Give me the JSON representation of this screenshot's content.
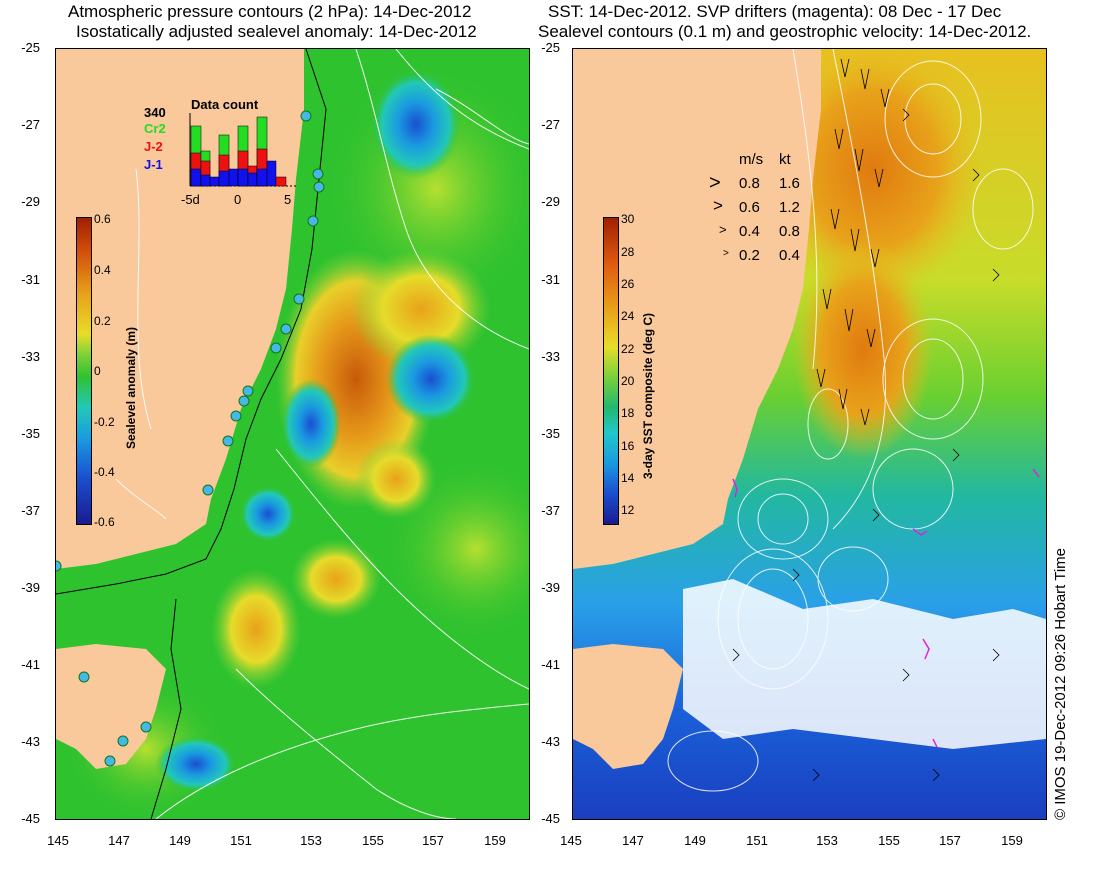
{
  "left_panel": {
    "title_line1": "Atmospheric pressure contours (2 hPa): 14-Dec-2012",
    "title_line2": "Isostatically adjusted sealevel anomaly: 14-Dec-2012",
    "colorbar": {
      "label": "Sealevel anomaly (m)",
      "ticks": [
        "0.6",
        "0.4",
        "0.2",
        "0",
        "-0.2",
        "-0.4",
        "-0.6"
      ]
    },
    "inset": {
      "title": "Data count",
      "max_label": "340",
      "series": [
        {
          "name": "Cr2",
          "color": "#22dd22"
        },
        {
          "name": "J-2",
          "color": "#ee1111"
        },
        {
          "name": "J-1",
          "color": "#1111ee"
        }
      ],
      "x_ticks": [
        "-5d",
        "0",
        "5"
      ]
    }
  },
  "right_panel": {
    "title_line1": "SST: 14-Dec-2012. SVP drifters (magenta): 08 Dec - 17 Dec",
    "title_line2": "Sealevel contours (0.1 m) and geostrophic velocity: 14-Dec-2012.",
    "colorbar": {
      "label": "3-day SST composite (deg C)",
      "ticks": [
        "30",
        "28",
        "26",
        "24",
        "22",
        "20",
        "18",
        "16",
        "14",
        "12"
      ]
    },
    "velocity_legend": {
      "header_ms": "m/s",
      "header_kt": "kt",
      "rows": [
        {
          "ms": "0.8",
          "kt": "1.6"
        },
        {
          "ms": "0.6",
          "kt": "1.2"
        },
        {
          "ms": "0.4",
          "kt": "0.8"
        },
        {
          "ms": "0.2",
          "kt": "0.4"
        }
      ]
    }
  },
  "axes": {
    "y_ticks": [
      "-25",
      "-27",
      "-29",
      "-31",
      "-33",
      "-35",
      "-37",
      "-39",
      "-41",
      "-43",
      "-45"
    ],
    "x_ticks": [
      "145",
      "147",
      "149",
      "151",
      "153",
      "155",
      "157",
      "159"
    ]
  },
  "credit": "© IMOS 19-Dec-2012 09:26 Hobart Time",
  "colors": {
    "land": "#f9c89b",
    "ocean_green": "#2fc22f",
    "ocean_light_green": "#7ad13a",
    "warm_orange": "#e8a21a",
    "sst_blue": "#2aa0e8",
    "sst_deep_blue": "#1a3fc0"
  }
}
